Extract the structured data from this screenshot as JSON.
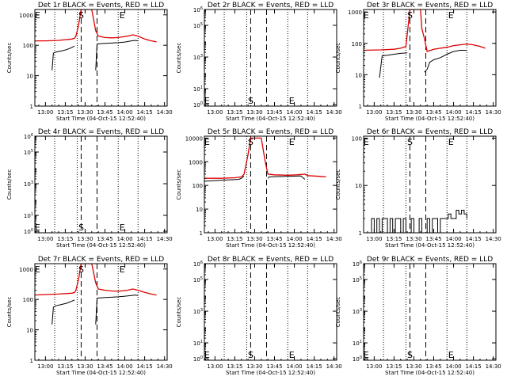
{
  "time_axis": {
    "ticks": [
      {
        "t": 0,
        "label": "13:00"
      },
      {
        "t": 15,
        "label": "13:15"
      },
      {
        "t": 30,
        "label": "13:30"
      },
      {
        "t": 45,
        "label": "13:45"
      },
      {
        "t": 60,
        "label": "14:00"
      },
      {
        "t": 75,
        "label": "14:15"
      },
      {
        "t": 90,
        "label": "14:30"
      }
    ],
    "range": [
      -8,
      92
    ],
    "xlabel": "Start Time (04-Oct-15 12:52:40)",
    "time_unit": "minutes after 13:00"
  },
  "ylabel": "Counts/sec",
  "markers": {
    "dotted_lines": [
      7,
      24,
      55,
      70
    ],
    "dashed_lines": [
      27,
      39
    ],
    "labels": [
      {
        "t": -6,
        "text": "E"
      },
      {
        "t": 27,
        "text": "S"
      },
      {
        "t": 58,
        "text": "E"
      }
    ]
  },
  "chart_data": [
    {
      "type": "line",
      "title": "Det 1r BLACK = Events, RED = LLD",
      "yscale": "log",
      "ylim": [
        1,
        1500
      ],
      "yticks": [
        {
          "v": 1,
          "label": "1"
        },
        {
          "v": 10,
          "label": "10"
        },
        {
          "v": 100,
          "label": "100"
        },
        {
          "v": 1000,
          "label": "1000"
        }
      ],
      "label_pos": "top",
      "series": [
        {
          "color": "#dd0000",
          "x": [
            -8,
            0,
            10,
            20,
            22,
            23,
            25,
            27,
            35,
            38,
            40,
            45,
            50,
            55,
            62,
            66,
            70,
            75,
            80,
            84
          ],
          "y": [
            140,
            140,
            145,
            160,
            170,
            200,
            450,
            1500,
            1500,
            300,
            200,
            180,
            175,
            180,
            200,
            220,
            200,
            160,
            140,
            130
          ]
        },
        {
          "color": "#000000",
          "segments": [
            {
              "x": [
                5,
                6,
                8,
                12,
                16,
                20,
                22
              ],
              "y": [
                15,
                55,
                60,
                65,
                72,
                85,
                95
              ]
            },
            {
              "x": [
                38,
                39,
                41,
                45,
                50,
                55,
                60,
                65,
                68,
                70
              ],
              "y": [
                15,
                110,
                112,
                115,
                118,
                122,
                128,
                140,
                145,
                140
              ]
            }
          ]
        }
      ]
    },
    {
      "type": "line",
      "title": "Det 2r BLACK = Events, RED = LLD",
      "yscale": "log",
      "ylim": [
        0.8,
        1000000
      ],
      "yticks": [
        {
          "v": 1,
          "label": "10^0"
        },
        {
          "v": 10,
          "label": "10^1"
        },
        {
          "v": 1000,
          "label": "10^3"
        },
        {
          "v": 100000,
          "label": "10^5"
        },
        {
          "v": 1000000,
          "label": "10^6"
        }
      ],
      "label_pos": "bottom",
      "series": []
    },
    {
      "type": "line",
      "title": "Det 3r BLACK = Events, RED = LLD",
      "yscale": "log",
      "ylim": [
        1,
        1200
      ],
      "yticks": [
        {
          "v": 1,
          "label": "1"
        },
        {
          "v": 10,
          "label": "10"
        },
        {
          "v": 100,
          "label": "100"
        },
        {
          "v": 1000,
          "label": "1000"
        }
      ],
      "label_pos": "top",
      "series": [
        {
          "color": "#dd0000",
          "x": [
            -8,
            5,
            15,
            20,
            24,
            27,
            35,
            36,
            38,
            40,
            45,
            50,
            55,
            60,
            65,
            70,
            75,
            80,
            84
          ],
          "y": [
            60,
            62,
            65,
            70,
            80,
            1200,
            1200,
            300,
            140,
            55,
            65,
            70,
            75,
            85,
            90,
            95,
            90,
            80,
            70
          ]
        },
        {
          "color": "#000000",
          "segments": [
            {
              "x": [
                4,
                6,
                10,
                15,
                20,
                25
              ],
              "y": [
                8,
                40,
                42,
                45,
                48,
                50
              ]
            },
            {
              "x": [
                38,
                40,
                42,
                45,
                50,
                55,
                60,
                65,
                70
              ],
              "y": [
                12,
                15,
                25,
                30,
                35,
                45,
                55,
                60,
                60
              ]
            }
          ]
        }
      ]
    },
    {
      "type": "line",
      "title": "Det 4r BLACK = Events, RED = LLD",
      "yscale": "log",
      "ylim": [
        0.8,
        1000000
      ],
      "yticks": [
        {
          "v": 1,
          "label": "10^0"
        },
        {
          "v": 10,
          "label": "10^1"
        },
        {
          "v": 1000,
          "label": "10^3"
        },
        {
          "v": 100000,
          "label": "10^5"
        },
        {
          "v": 1000000,
          "label": "10^6"
        }
      ],
      "label_pos": "bottom",
      "series": []
    },
    {
      "type": "line",
      "title": "Det 5r BLACK = Events, RED = LLD",
      "yscale": "log",
      "ylim": [
        1,
        12000
      ],
      "yticks": [
        {
          "v": 1,
          "label": "1"
        },
        {
          "v": 10,
          "label": "10"
        },
        {
          "v": 100,
          "label": "100"
        },
        {
          "v": 1000,
          "label": "1000"
        },
        {
          "v": 10000,
          "label": "10000"
        }
      ],
      "label_pos": "top",
      "series": [
        {
          "color": "#dd0000",
          "x": [
            -8,
            5,
            15,
            20,
            22,
            25,
            27,
            35,
            38,
            40,
            45,
            55,
            62,
            68,
            70,
            75,
            80,
            84
          ],
          "y": [
            200,
            200,
            210,
            230,
            300,
            2000,
            10000,
            10000,
            1000,
            300,
            280,
            270,
            280,
            300,
            260,
            250,
            240,
            230
          ]
        },
        {
          "color": "#000000",
          "segments": [
            {
              "x": [
                -8,
                0,
                10,
                18,
                20,
                22
              ],
              "y": [
                150,
                160,
                170,
                180,
                200,
                250
              ]
            },
            {
              "x": [
                40,
                41,
                45,
                55,
                60,
                65,
                68
              ],
              "y": [
                200,
                230,
                235,
                240,
                245,
                250,
                180
              ]
            }
          ]
        }
      ]
    },
    {
      "type": "line",
      "title": "Det 6r BLACK = Events, RED = LLD",
      "yscale": "log",
      "ylim": [
        1,
        110
      ],
      "yticks": [
        {
          "v": 1,
          "label": "1"
        },
        {
          "v": 10,
          "label": "10"
        },
        {
          "v": 100,
          "label": "100"
        }
      ],
      "label_pos": "top",
      "series": [
        {
          "color": "#000000",
          "step": true,
          "x": [
            -4,
            -2,
            0,
            2,
            4,
            6,
            8,
            10,
            12,
            14,
            16,
            18,
            20,
            22,
            24,
            26,
            28,
            30,
            32,
            34,
            36,
            38,
            40,
            42,
            44,
            46,
            48,
            50,
            52,
            54,
            56,
            58,
            60,
            62,
            64,
            66,
            68,
            70
          ],
          "y": [
            1,
            2,
            1,
            2,
            1,
            2,
            2,
            1,
            2,
            1,
            2,
            2,
            1,
            2,
            1,
            1,
            2,
            1,
            1,
            2,
            1,
            1,
            2,
            1,
            2,
            2,
            1,
            2,
            2,
            2,
            2.5,
            2,
            2,
            3,
            2.5,
            3,
            2.5,
            2
          ]
        }
      ]
    },
    {
      "type": "line",
      "title": "Det 7r BLACK = Events, RED = LLD",
      "yscale": "log",
      "ylim": [
        1,
        1500
      ],
      "yticks": [
        {
          "v": 1,
          "label": "1"
        },
        {
          "v": 10,
          "label": "10"
        },
        {
          "v": 100,
          "label": "100"
        },
        {
          "v": 1000,
          "label": "1000"
        }
      ],
      "label_pos": "top",
      "series": [
        {
          "color": "#dd0000",
          "x": [
            -8,
            0,
            10,
            20,
            22,
            23,
            25,
            27,
            35,
            38,
            40,
            45,
            50,
            55,
            62,
            66,
            70,
            75,
            80,
            84
          ],
          "y": [
            140,
            145,
            150,
            160,
            170,
            200,
            450,
            1500,
            1500,
            350,
            220,
            200,
            190,
            185,
            200,
            220,
            200,
            170,
            150,
            140
          ]
        },
        {
          "color": "#000000",
          "segments": [
            {
              "x": [
                5,
                6,
                8,
                12,
                16,
                20,
                22
              ],
              "y": [
                15,
                55,
                62,
                68,
                75,
                88,
                95
              ]
            },
            {
              "x": [
                38,
                39,
                41,
                45,
                50,
                55,
                60,
                65,
                68,
                70
              ],
              "y": [
                15,
                110,
                112,
                115,
                118,
                122,
                128,
                135,
                140,
                135
              ]
            }
          ]
        }
      ]
    },
    {
      "type": "line",
      "title": "Det 8r BLACK = Events, RED = LLD",
      "yscale": "log",
      "ylim": [
        0.8,
        1000000
      ],
      "yticks": [
        {
          "v": 1,
          "label": "10^0"
        },
        {
          "v": 10,
          "label": "10^1"
        },
        {
          "v": 1000,
          "label": "10^3"
        },
        {
          "v": 100000,
          "label": "10^5"
        },
        {
          "v": 1000000,
          "label": "10^6"
        }
      ],
      "label_pos": "bottom",
      "series": []
    },
    {
      "type": "line",
      "title": "Det 9r BLACK = Events, RED = LLD",
      "yscale": "log",
      "ylim": [
        0.8,
        1000000
      ],
      "yticks": [
        {
          "v": 1,
          "label": "10^0"
        },
        {
          "v": 10,
          "label": "10^1"
        },
        {
          "v": 1000,
          "label": "10^3"
        },
        {
          "v": 100000,
          "label": "10^5"
        },
        {
          "v": 1000000,
          "label": "10^6"
        }
      ],
      "label_pos": "bottom",
      "series": []
    }
  ]
}
